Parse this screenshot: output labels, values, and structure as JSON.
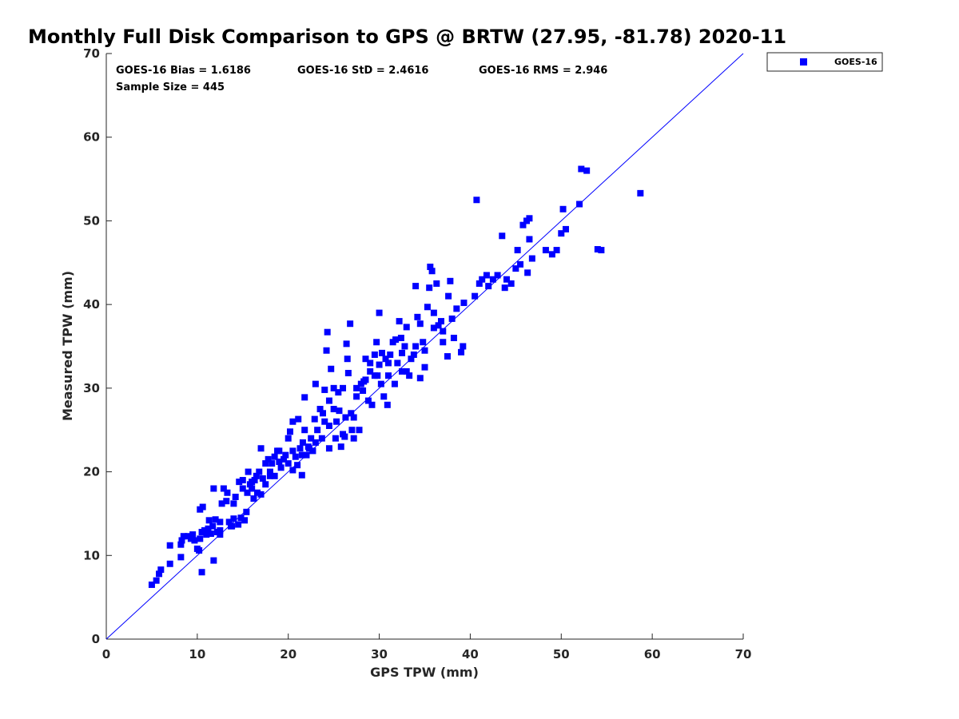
{
  "chart_data": {
    "type": "scatter",
    "title": "Monthly Full Disk Comparison to GPS @ BRTW (27.95, -81.78) 2020-11",
    "xlabel": "GPS TPW (mm)",
    "ylabel": "Measured TPW (mm)",
    "xlim": [
      0,
      70
    ],
    "ylim": [
      0,
      70
    ],
    "xticks": [
      "0",
      "10",
      "20",
      "30",
      "40",
      "50",
      "60",
      "70"
    ],
    "yticks": [
      "0",
      "10",
      "20",
      "30",
      "40",
      "50",
      "60",
      "70"
    ],
    "grid": false,
    "legend_position": "outside-top-right",
    "reference_line": {
      "x": [
        0,
        70
      ],
      "y": [
        0,
        70
      ],
      "color": "#0000ff"
    },
    "stats": {
      "bias": "GOES-16 Bias = 1.6186",
      "std": "GOES-16 StD = 2.4616",
      "rms": "GOES-16 RMS = 2.946",
      "sample_size": "Sample Size = 445"
    },
    "series": [
      {
        "name": "GOES-16",
        "color": "#0000ff",
        "marker": "square",
        "points": [
          [
            5.0,
            6.5
          ],
          [
            5.5,
            7.0
          ],
          [
            5.8,
            7.8
          ],
          [
            6.0,
            8.3
          ],
          [
            7.0,
            9.0
          ],
          [
            7.0,
            11.2
          ],
          [
            8.2,
            9.8
          ],
          [
            8.2,
            11.3
          ],
          [
            8.3,
            11.8
          ],
          [
            8.5,
            12.3
          ],
          [
            9.0,
            12.3
          ],
          [
            9.3,
            12.0
          ],
          [
            9.5,
            12.5
          ],
          [
            9.7,
            11.8
          ],
          [
            10.0,
            10.8
          ],
          [
            10.2,
            10.6
          ],
          [
            10.3,
            12.0
          ],
          [
            10.5,
            12.8
          ],
          [
            10.3,
            15.5
          ],
          [
            10.6,
            15.8
          ],
          [
            10.8,
            13.0
          ],
          [
            11.0,
            12.5
          ],
          [
            11.2,
            13.2
          ],
          [
            11.5,
            12.6
          ],
          [
            11.3,
            14.2
          ],
          [
            11.7,
            13.5
          ],
          [
            11.8,
            18.0
          ],
          [
            12.0,
            14.3
          ],
          [
            12.2,
            12.8
          ],
          [
            12.5,
            13.0
          ],
          [
            12.5,
            14.0
          ],
          [
            12.7,
            16.2
          ],
          [
            12.9,
            18.0
          ],
          [
            13.2,
            16.5
          ],
          [
            13.3,
            17.5
          ],
          [
            13.5,
            14.0
          ],
          [
            13.7,
            13.5
          ],
          [
            14.0,
            14.4
          ],
          [
            14.0,
            16.2
          ],
          [
            14.2,
            17.0
          ],
          [
            14.5,
            13.7
          ],
          [
            14.6,
            18.8
          ],
          [
            14.8,
            14.5
          ],
          [
            15.0,
            18.0
          ],
          [
            15.0,
            19.0
          ],
          [
            15.2,
            14.2
          ],
          [
            15.4,
            15.2
          ],
          [
            15.5,
            17.5
          ],
          [
            15.6,
            20.0
          ],
          [
            15.8,
            18.5
          ],
          [
            16.0,
            18.0
          ],
          [
            16.2,
            16.8
          ],
          [
            16.3,
            19.0
          ],
          [
            16.5,
            19.5
          ],
          [
            16.6,
            17.5
          ],
          [
            16.8,
            20.0
          ],
          [
            17.0,
            22.8
          ],
          [
            17.0,
            17.3
          ],
          [
            17.2,
            19.2
          ],
          [
            17.5,
            21.0
          ],
          [
            17.5,
            18.5
          ],
          [
            17.8,
            21.5
          ],
          [
            18.0,
            20.0
          ],
          [
            18.2,
            21.0
          ],
          [
            18.5,
            21.8
          ],
          [
            18.5,
            19.5
          ],
          [
            18.8,
            22.5
          ],
          [
            19.0,
            21.2
          ],
          [
            19.2,
            20.5
          ],
          [
            19.5,
            21.5
          ],
          [
            19.7,
            22.0
          ],
          [
            20.0,
            24.0
          ],
          [
            20.0,
            21.0
          ],
          [
            20.2,
            24.8
          ],
          [
            20.5,
            26.0
          ],
          [
            20.5,
            22.5
          ],
          [
            20.8,
            21.8
          ],
          [
            21.0,
            20.8
          ],
          [
            21.1,
            26.3
          ],
          [
            21.3,
            22.8
          ],
          [
            21.5,
            19.6
          ],
          [
            21.6,
            23.5
          ],
          [
            21.8,
            25.0
          ],
          [
            21.8,
            28.9
          ],
          [
            22.0,
            22.0
          ],
          [
            22.2,
            23.0
          ],
          [
            22.5,
            24.0
          ],
          [
            22.7,
            22.5
          ],
          [
            22.9,
            26.3
          ],
          [
            23.0,
            30.5
          ],
          [
            23.2,
            25.0
          ],
          [
            23.5,
            27.5
          ],
          [
            23.7,
            24.0
          ],
          [
            24.0,
            26.0
          ],
          [
            24.0,
            29.8
          ],
          [
            24.2,
            34.5
          ],
          [
            24.3,
            36.7
          ],
          [
            24.5,
            28.5
          ],
          [
            24.5,
            25.5
          ],
          [
            24.7,
            32.3
          ],
          [
            25.0,
            30.0
          ],
          [
            25.0,
            27.5
          ],
          [
            25.2,
            24.0
          ],
          [
            25.5,
            29.5
          ],
          [
            25.6,
            27.3
          ],
          [
            25.8,
            23.0
          ],
          [
            26.0,
            24.5
          ],
          [
            26.0,
            30.0
          ],
          [
            26.3,
            26.5
          ],
          [
            26.4,
            35.3
          ],
          [
            26.5,
            33.5
          ],
          [
            26.6,
            31.8
          ],
          [
            26.8,
            37.7
          ],
          [
            26.9,
            27.0
          ],
          [
            27.0,
            25.0
          ],
          [
            27.2,
            24.0
          ],
          [
            27.5,
            29.0
          ],
          [
            27.8,
            25.0
          ],
          [
            28.0,
            30.5
          ],
          [
            28.2,
            29.7
          ],
          [
            28.5,
            31.0
          ],
          [
            28.5,
            33.5
          ],
          [
            28.8,
            28.5
          ],
          [
            29.0,
            32.0
          ],
          [
            29.2,
            28.0
          ],
          [
            29.5,
            31.5
          ],
          [
            29.5,
            34.0
          ],
          [
            29.7,
            35.5
          ],
          [
            30.0,
            39.0
          ],
          [
            30.0,
            32.8
          ],
          [
            30.2,
            30.5
          ],
          [
            30.5,
            29.0
          ],
          [
            30.7,
            33.5
          ],
          [
            30.9,
            28.0
          ],
          [
            31.0,
            31.5
          ],
          [
            31.2,
            34.0
          ],
          [
            31.5,
            35.5
          ],
          [
            31.7,
            30.5
          ],
          [
            32.0,
            33.0
          ],
          [
            32.2,
            38.0
          ],
          [
            32.4,
            36.0
          ],
          [
            32.5,
            32.0
          ],
          [
            32.8,
            35.0
          ],
          [
            33.0,
            37.3
          ],
          [
            33.3,
            31.5
          ],
          [
            33.5,
            33.5
          ],
          [
            33.8,
            34.0
          ],
          [
            34.0,
            42.2
          ],
          [
            34.2,
            38.5
          ],
          [
            34.5,
            37.7
          ],
          [
            34.5,
            31.2
          ],
          [
            34.8,
            35.5
          ],
          [
            35.0,
            32.5
          ],
          [
            35.3,
            39.7
          ],
          [
            35.5,
            42.0
          ],
          [
            35.6,
            44.5
          ],
          [
            35.8,
            44.0
          ],
          [
            36.0,
            39.0
          ],
          [
            36.3,
            42.5
          ],
          [
            36.5,
            37.5
          ],
          [
            36.8,
            38.0
          ],
          [
            37.0,
            36.8
          ],
          [
            37.5,
            33.8
          ],
          [
            37.6,
            41.0
          ],
          [
            37.8,
            42.8
          ],
          [
            38.0,
            38.3
          ],
          [
            38.2,
            36.0
          ],
          [
            38.5,
            39.5
          ],
          [
            39.0,
            34.3
          ],
          [
            39.2,
            35.0
          ],
          [
            39.3,
            40.2
          ],
          [
            40.5,
            41.0
          ],
          [
            40.7,
            52.5
          ],
          [
            41.0,
            42.5
          ],
          [
            41.3,
            43.0
          ],
          [
            41.8,
            43.5
          ],
          [
            42.0,
            42.2
          ],
          [
            42.5,
            43.0
          ],
          [
            43.0,
            43.5
          ],
          [
            43.5,
            48.2
          ],
          [
            43.8,
            42.0
          ],
          [
            44.0,
            43.0
          ],
          [
            44.5,
            42.5
          ],
          [
            45.0,
            44.3
          ],
          [
            45.2,
            46.5
          ],
          [
            45.5,
            44.8
          ],
          [
            45.8,
            49.5
          ],
          [
            46.2,
            50.0
          ],
          [
            46.3,
            43.8
          ],
          [
            46.5,
            50.3
          ],
          [
            46.5,
            47.8
          ],
          [
            46.8,
            45.5
          ],
          [
            48.3,
            46.5
          ],
          [
            49.0,
            46.0
          ],
          [
            49.5,
            46.5
          ],
          [
            50.0,
            48.5
          ],
          [
            50.5,
            49.0
          ],
          [
            50.2,
            51.4
          ],
          [
            52.0,
            52.0
          ],
          [
            52.2,
            56.2
          ],
          [
            52.8,
            56.0
          ],
          [
            54.0,
            46.6
          ],
          [
            54.4,
            46.5
          ],
          [
            58.7,
            53.3
          ],
          [
            10.5,
            8.0
          ],
          [
            11.8,
            9.4
          ],
          [
            12.5,
            12.5
          ],
          [
            13.8,
            13.5
          ],
          [
            16.0,
            18.8
          ],
          [
            18.0,
            19.5
          ],
          [
            19.0,
            22.5
          ],
          [
            20.5,
            20.2
          ],
          [
            21.5,
            22.0
          ],
          [
            22.3,
            22.8
          ],
          [
            23.0,
            23.5
          ],
          [
            23.8,
            27.0
          ],
          [
            24.5,
            22.8
          ],
          [
            25.3,
            26.0
          ],
          [
            26.2,
            24.2
          ],
          [
            27.2,
            26.5
          ],
          [
            27.5,
            30.0
          ],
          [
            28.3,
            30.8
          ],
          [
            29.0,
            33.0
          ],
          [
            29.8,
            31.5
          ],
          [
            30.3,
            34.2
          ],
          [
            31.0,
            33.0
          ],
          [
            31.8,
            35.8
          ],
          [
            32.5,
            34.2
          ],
          [
            33.0,
            32.0
          ],
          [
            34.0,
            35.0
          ],
          [
            35.0,
            34.5
          ],
          [
            36.0,
            37.2
          ],
          [
            37.0,
            35.5
          ]
        ]
      }
    ]
  }
}
